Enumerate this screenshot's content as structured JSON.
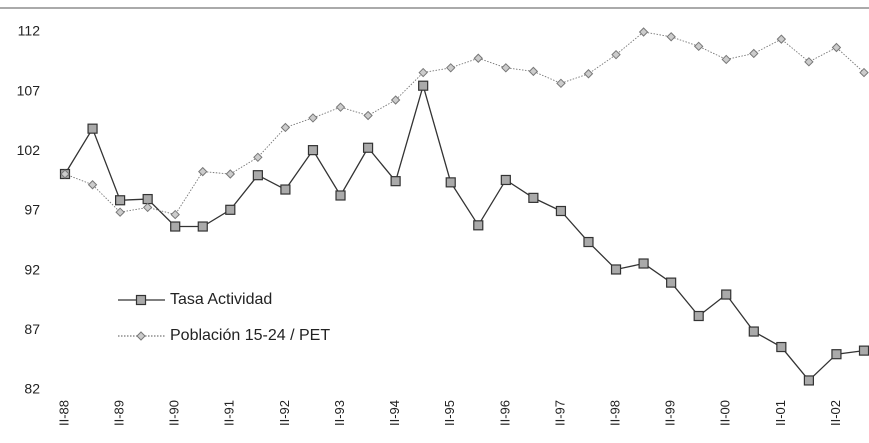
{
  "chart_data": {
    "type": "line",
    "categories": [
      "II-88",
      null,
      "II-89",
      null,
      "II-90",
      null,
      "II-91",
      null,
      "II-92",
      null,
      "II-93",
      null,
      "II-94",
      null,
      "II-95",
      null,
      "II-96",
      null,
      "II-97",
      null,
      "II-98",
      null,
      "II-99",
      null,
      "II-00",
      null,
      "II-01",
      null,
      "II-02",
      null
    ],
    "series": [
      {
        "name": "Tasa Actividad",
        "color": "#333333",
        "marker": "square",
        "values": [
          100.1,
          103.9,
          97.9,
          98.0,
          95.7,
          95.7,
          97.1,
          100.0,
          98.8,
          102.1,
          98.3,
          102.3,
          99.5,
          107.5,
          99.4,
          95.8,
          99.6,
          98.1,
          97.0,
          94.4,
          92.1,
          92.6,
          91.0,
          88.2,
          90.0,
          86.9,
          85.6,
          82.8,
          85.0,
          85.3
        ]
      },
      {
        "name": "Población 15-24 / PET",
        "color": "#777777",
        "marker": "diamond",
        "values": [
          100.1,
          99.2,
          96.9,
          97.3,
          96.7,
          100.3,
          100.1,
          101.5,
          104.0,
          104.8,
          105.7,
          105.0,
          106.3,
          108.6,
          109.0,
          109.8,
          109.0,
          108.7,
          107.7,
          108.5,
          110.1,
          112.0,
          111.6,
          110.8,
          109.7,
          110.2,
          111.4,
          109.5,
          110.7,
          108.6
        ]
      }
    ],
    "ylim": [
      82,
      112
    ],
    "yticks": [
      82,
      87,
      92,
      97,
      102,
      107,
      112
    ],
    "grid": false
  }
}
